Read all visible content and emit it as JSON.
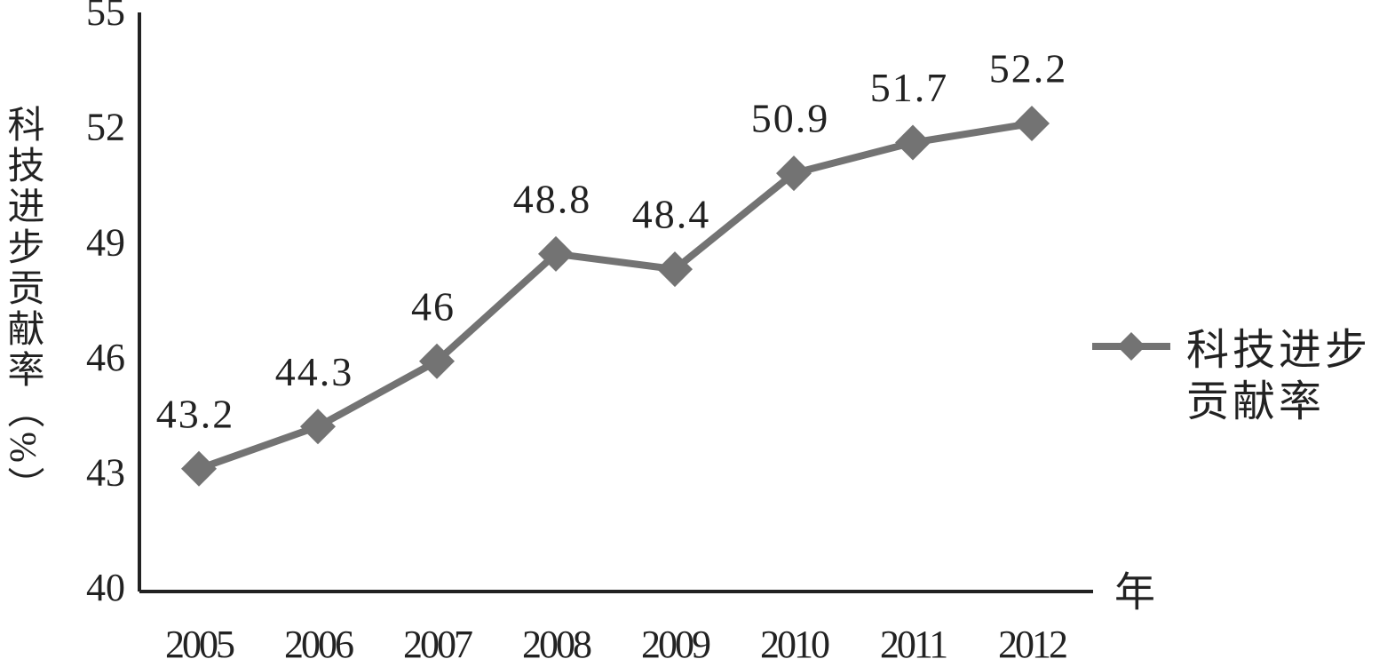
{
  "chart_data": {
    "type": "line",
    "y_label": "科技进步贡献率（%）",
    "x_label": "年",
    "categories": [
      "2005",
      "2006",
      "2007",
      "2008",
      "2009",
      "2010",
      "2011",
      "2012"
    ],
    "series": [
      {
        "name": "科技进步贡献率",
        "color": "#737373",
        "values": [
          43.2,
          44.3,
          46,
          48.8,
          48.4,
          50.9,
          51.7,
          52.2
        ]
      }
    ],
    "ylim": [
      40,
      55
    ],
    "yticks": [
      40,
      43,
      46,
      49,
      52,
      55
    ],
    "data_labels": true,
    "grid": false,
    "legend": "right"
  }
}
